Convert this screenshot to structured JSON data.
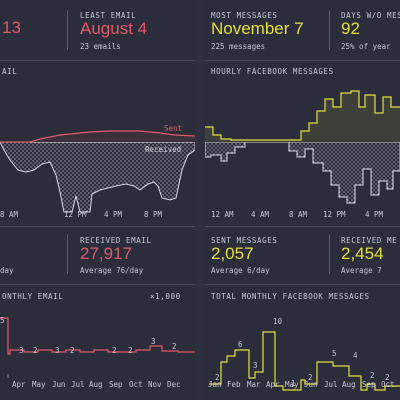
{
  "colors": {
    "email": "#e05a67",
    "facebook": "#e4df3c",
    "received": "#d8d8e0",
    "bg": "#2b2d3b"
  },
  "email": {
    "stat1_value": "13",
    "least_label": "LEAST EMAIL",
    "least_value": "August 4",
    "least_sub": "23 emails",
    "hourly_label": "AIL",
    "sent_label": "Sent",
    "received_label": "Received",
    "hour_ticks": [
      "8 AM",
      "12 PM",
      "4 PM",
      "8 PM"
    ],
    "left_sub": "day",
    "received_email_label": "RECEIVED EMAIL",
    "received_email_value": "27,917",
    "received_email_sub": "Average 76/day",
    "monthly_label": "ONTHLY EMAIL",
    "multiplier": "×1,000",
    "months": [
      "Apr",
      "May",
      "Jun",
      "Jul",
      "Aug",
      "Sep",
      "Oct",
      "Nov",
      "Dec"
    ],
    "month_values": [
      "3",
      "2",
      "3",
      "2",
      "2",
      "2",
      "3",
      "2"
    ],
    "first_value": "5"
  },
  "facebook": {
    "most_label": "MOST MESSAGES",
    "most_value": "November 7",
    "most_sub": "225 messages",
    "days_label": "DAYS W/O MESS",
    "days_value": "92",
    "days_sub": "25% of year",
    "hourly_label": "HOURLY FACEBOOK MESSAGES",
    "hour_ticks": [
      "12 AM",
      "4 AM",
      "8 AM",
      "12 PM",
      "4 PM"
    ],
    "sent_label": "SENT MESSAGES",
    "sent_value": "2,057",
    "sent_sub": "Average 6/day",
    "received_label": "RECEIVED ME",
    "received_value": "2,454",
    "received_sub": "Average 7",
    "monthly_label": "TOTAL MONTHLY FACEBOOK MESSAGES",
    "months": [
      "Jan",
      "Feb",
      "Mar",
      "Apr",
      "May",
      "Jun",
      "Jul",
      "Aug",
      "Sep",
      "Oct"
    ],
    "month_values": [
      "2",
      "6",
      "3",
      "10",
      "1",
      "2",
      "5",
      "4",
      "2",
      "2"
    ]
  }
}
